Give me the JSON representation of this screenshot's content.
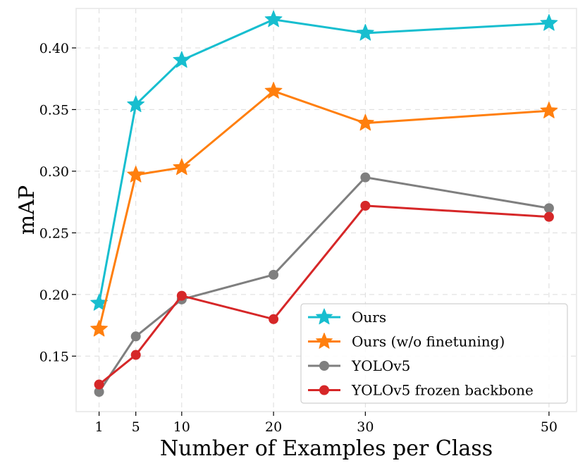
{
  "chart_data": {
    "type": "line",
    "title": "",
    "xlabel": "Number of Examples per Class",
    "ylabel": "mAP",
    "x": [
      1,
      5,
      10,
      20,
      30,
      50
    ],
    "xticks": [
      1,
      5,
      10,
      20,
      30,
      50
    ],
    "xtick_labels": [
      "1",
      "5",
      "10",
      "20",
      "30",
      "50"
    ],
    "yticks": [
      0.15,
      0.2,
      0.25,
      0.3,
      0.35,
      0.4
    ],
    "ytick_labels": [
      "0.15",
      "0.20",
      "0.25",
      "0.30",
      "0.35",
      "0.40"
    ],
    "xlim": [
      -1.5,
      53
    ],
    "ylim": [
      0.105,
      0.432
    ],
    "grid": true,
    "legend_position": "bottom-right",
    "series": [
      {
        "name": "Ours",
        "marker": "star",
        "color": "#17becf",
        "values": [
          0.193,
          0.354,
          0.39,
          0.423,
          0.412,
          0.42
        ]
      },
      {
        "name": "Ours (w/o finetuning)",
        "marker": "star",
        "color": "#ff7f0e",
        "values": [
          0.172,
          0.297,
          0.303,
          0.365,
          0.339,
          0.349
        ]
      },
      {
        "name": "YOLOv5",
        "marker": "circle",
        "color": "#7f7f7f",
        "values": [
          0.121,
          0.166,
          0.196,
          0.216,
          0.295,
          0.27
        ]
      },
      {
        "name": "YOLOv5 frozen backbone",
        "marker": "circle",
        "color": "#d62728",
        "values": [
          0.127,
          0.151,
          0.199,
          0.18,
          0.272,
          0.263
        ]
      }
    ]
  }
}
